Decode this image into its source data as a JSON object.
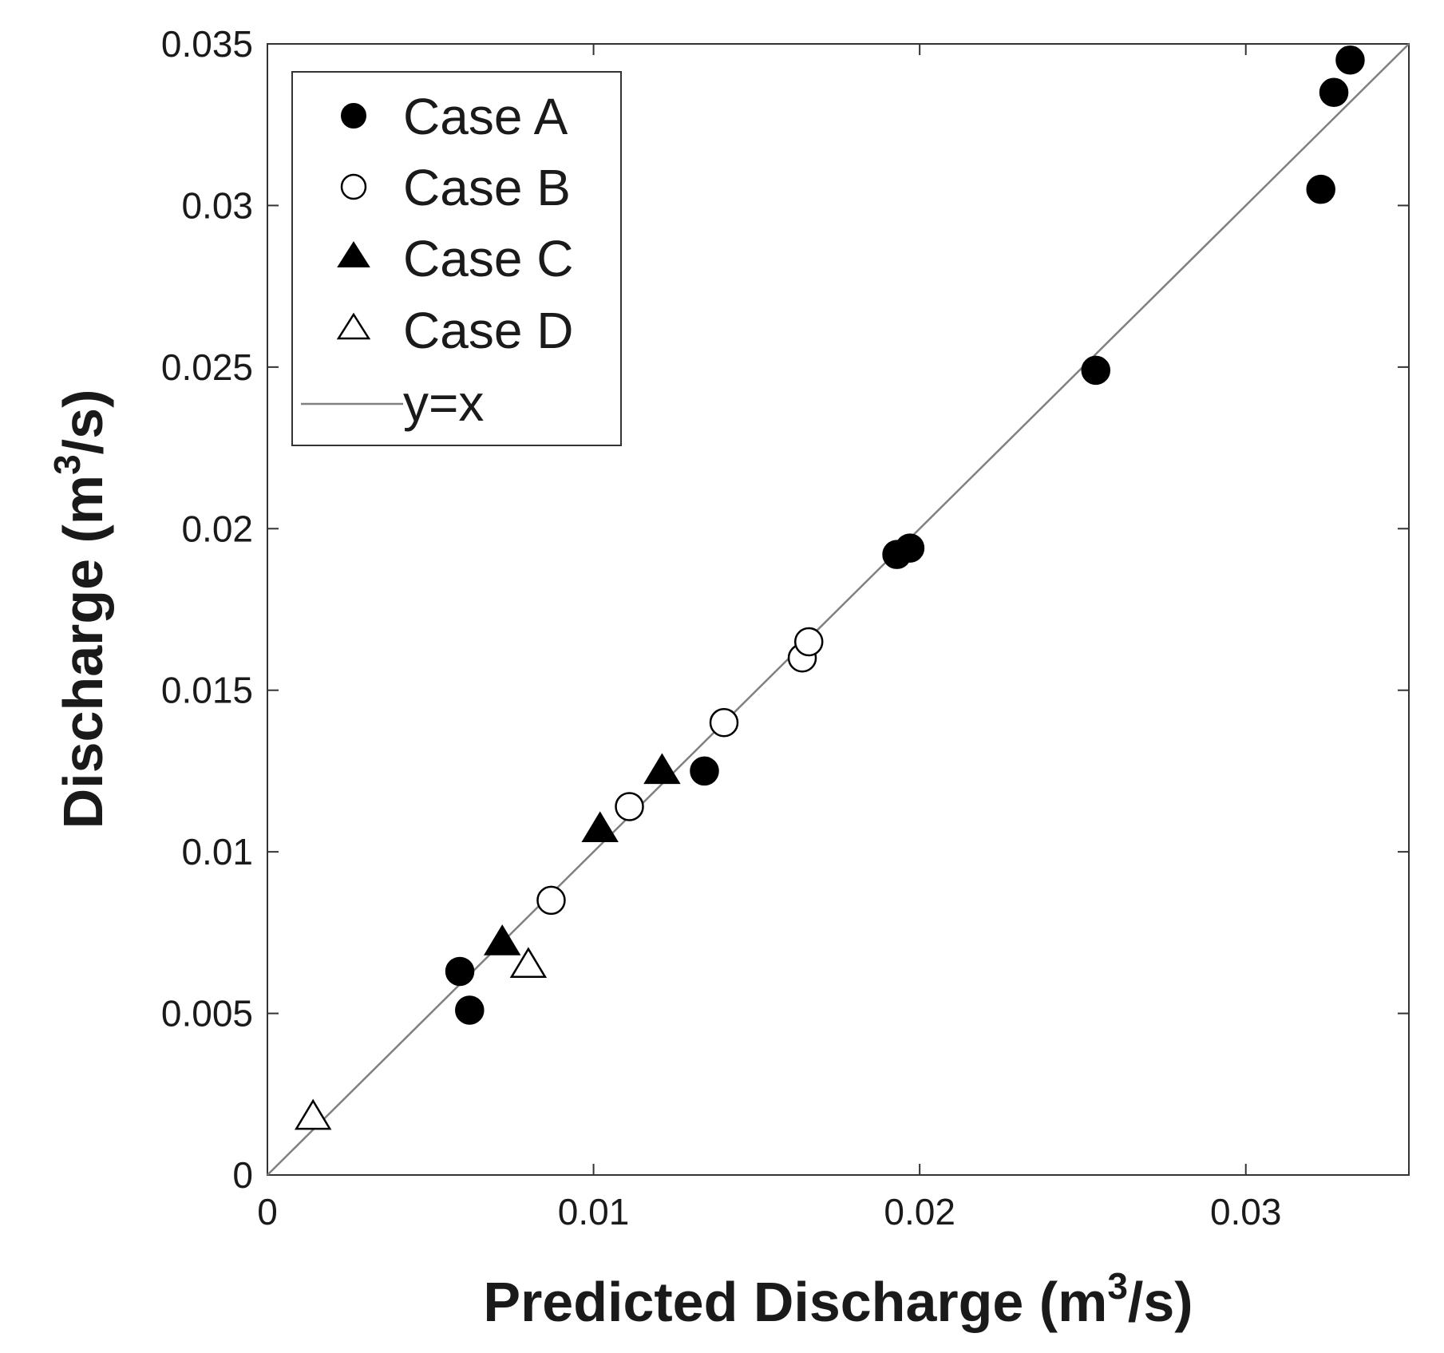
{
  "chart_data": {
    "type": "scatter",
    "title": "",
    "xlabel_main": "Predicted Discharge (m",
    "xlabel_sup": "3",
    "xlabel_end": "/s)",
    "ylabel_main": "Discharge (m",
    "ylabel_sup": "3",
    "ylabel_end": "/s)",
    "xlim": [
      0,
      0.035
    ],
    "ylim": [
      0,
      0.035
    ],
    "xticks": [
      0,
      0.01,
      0.02,
      0.03
    ],
    "xtick_labels": [
      "0",
      "0.01",
      "0.02",
      "0.03"
    ],
    "yticks": [
      0,
      0.005,
      0.01,
      0.015,
      0.02,
      0.025,
      0.03,
      0.035
    ],
    "ytick_labels": [
      "0",
      "0.005",
      "0.01",
      "0.015",
      "0.02",
      "0.025",
      "0.03",
      "0.035"
    ],
    "grid": false,
    "legend_position": "top-left",
    "series": [
      {
        "name": "Case A",
        "marker": "filled-circle",
        "points": [
          [
            0.0059,
            0.0063
          ],
          [
            0.0062,
            0.0051
          ],
          [
            0.0134,
            0.0125
          ],
          [
            0.0193,
            0.0192
          ],
          [
            0.0197,
            0.0194
          ],
          [
            0.0254,
            0.0249
          ],
          [
            0.0323,
            0.0305
          ],
          [
            0.0327,
            0.0335
          ],
          [
            0.0332,
            0.0345
          ]
        ]
      },
      {
        "name": "Case B",
        "marker": "open-circle",
        "points": [
          [
            0.0087,
            0.0085
          ],
          [
            0.0111,
            0.0114
          ],
          [
            0.014,
            0.014
          ],
          [
            0.0164,
            0.016
          ],
          [
            0.0166,
            0.0165
          ]
        ]
      },
      {
        "name": "Case C",
        "marker": "filled-triangle",
        "points": [
          [
            0.0072,
            0.0072
          ],
          [
            0.0102,
            0.0107
          ],
          [
            0.0121,
            0.0125
          ]
        ]
      },
      {
        "name": "Case D",
        "marker": "open-triangle",
        "points": [
          [
            0.0014,
            0.0018
          ],
          [
            0.008,
            0.0065
          ]
        ]
      }
    ],
    "reference_line": {
      "name": "y=x",
      "from": [
        0,
        0
      ],
      "to": [
        0.035,
        0.035
      ],
      "color": "#808080"
    },
    "colors": {
      "marker_fill": "#000000",
      "open_fill": "#ffffff",
      "axis": "#333333",
      "text": "#1a1a1a"
    }
  }
}
